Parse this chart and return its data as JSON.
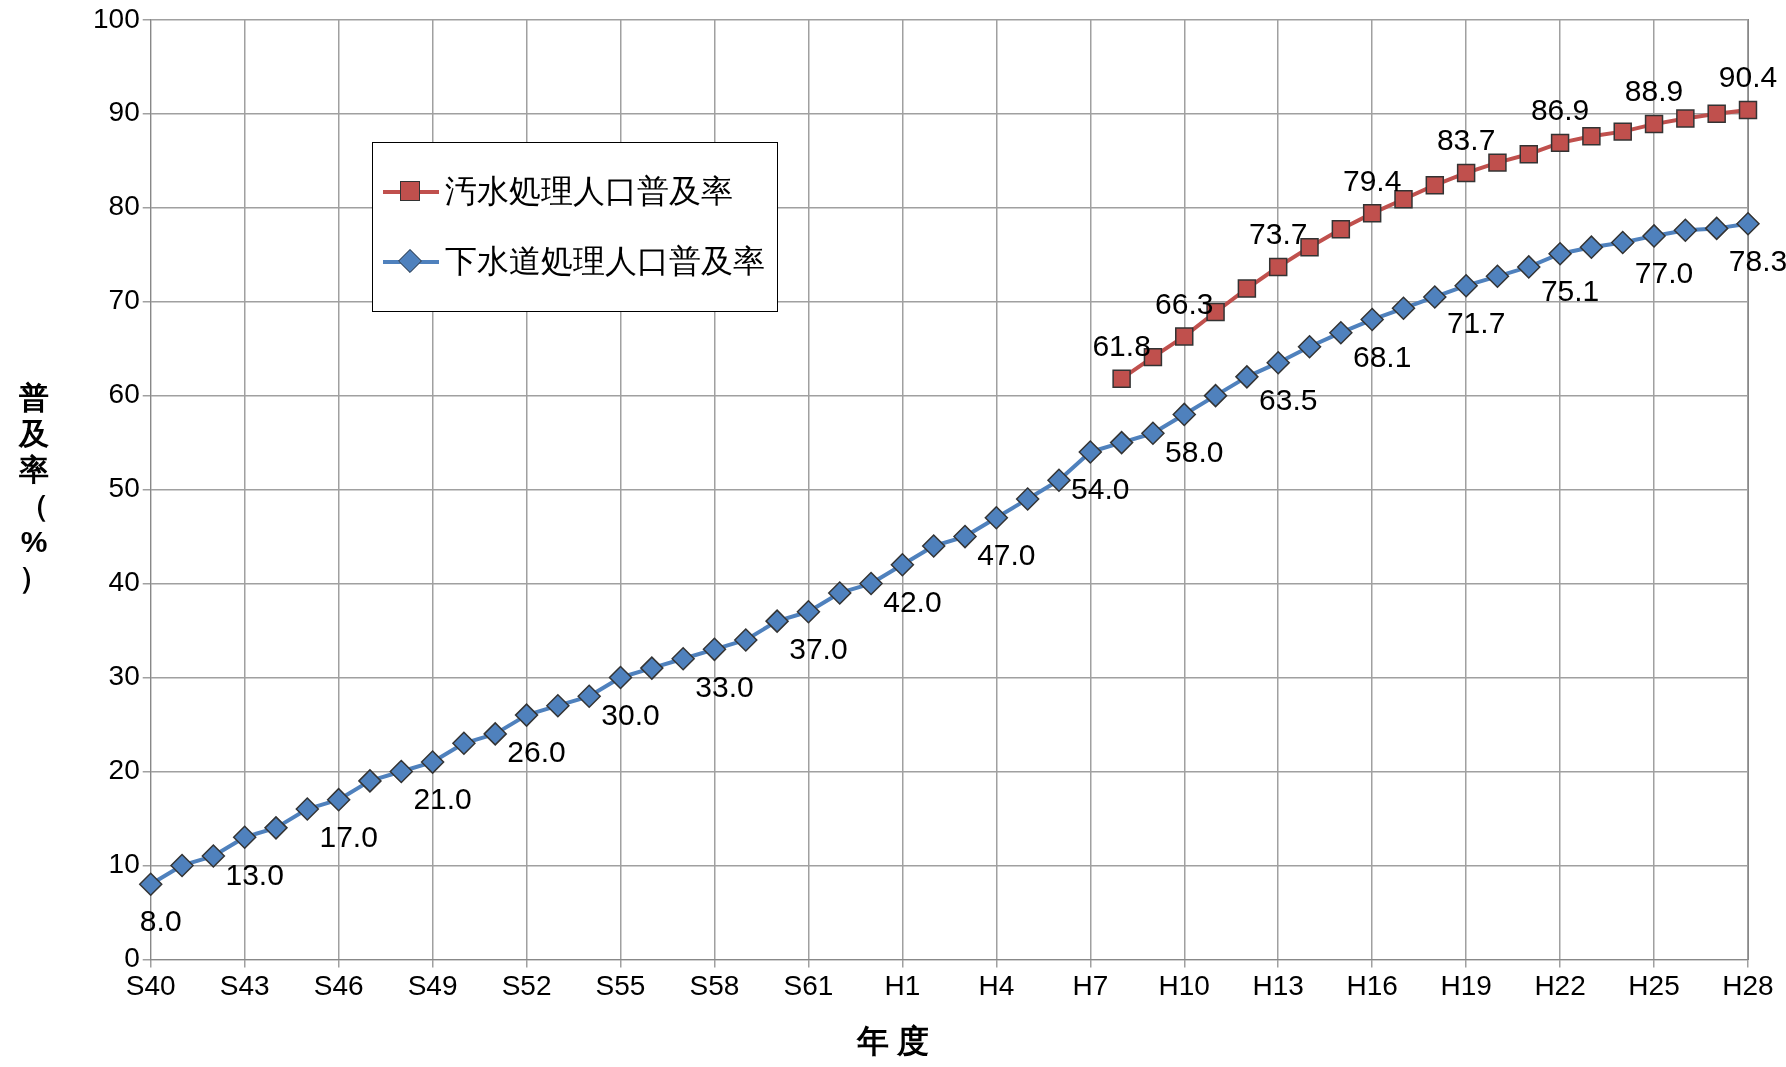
{
  "chart_data": {
    "type": "line",
    "xlabel": "年 度",
    "ylabel": "普及率（%）",
    "categories": [
      "S40",
      null,
      null,
      "S43",
      null,
      null,
      "S46",
      null,
      null,
      "S49",
      null,
      null,
      "S52",
      null,
      null,
      "S55",
      null,
      null,
      "S58",
      null,
      null,
      "S61",
      null,
      null,
      "H1",
      null,
      null,
      "H4",
      null,
      null,
      "H7",
      null,
      null,
      "H10",
      null,
      null,
      "H13",
      null,
      null,
      "H16",
      null,
      null,
      "H19",
      null,
      null,
      "H22",
      null,
      null,
      "H25",
      null,
      null,
      "H28"
    ],
    "ylim": [
      0,
      100
    ],
    "yticks": [
      0,
      10,
      20,
      30,
      40,
      50,
      60,
      70,
      80,
      90,
      100
    ],
    "grid": true,
    "legend": "top left",
    "series": [
      {
        "name": "汚水処理人口普及率",
        "color": "#c0504d",
        "marker": "square",
        "values": [
          null,
          null,
          null,
          null,
          null,
          null,
          null,
          null,
          null,
          null,
          null,
          null,
          null,
          null,
          null,
          null,
          null,
          null,
          null,
          null,
          null,
          null,
          null,
          null,
          null,
          null,
          null,
          null,
          null,
          null,
          null,
          61.8,
          64.1,
          66.3,
          68.9,
          71.4,
          73.7,
          75.8,
          77.7,
          79.4,
          80.9,
          82.4,
          83.7,
          84.8,
          85.7,
          86.9,
          87.6,
          88.1,
          88.9,
          89.5,
          90.0,
          90.4
        ],
        "value_labels": [
          null,
          null,
          null,
          null,
          null,
          null,
          null,
          null,
          null,
          null,
          null,
          null,
          null,
          null,
          null,
          null,
          null,
          null,
          null,
          null,
          null,
          null,
          null,
          null,
          null,
          null,
          null,
          null,
          null,
          null,
          null,
          "61.8",
          null,
          "66.3",
          null,
          null,
          "73.7",
          null,
          null,
          "79.4",
          null,
          null,
          "83.7",
          null,
          null,
          "86.9",
          null,
          null,
          "88.9",
          null,
          null,
          "90.4"
        ]
      },
      {
        "name": "下水道処理人口普及率",
        "color": "#4f81bd",
        "marker": "diamond",
        "values": [
          8,
          10,
          11,
          13,
          14,
          16,
          17,
          19,
          20,
          21,
          23,
          24,
          26,
          27,
          28,
          30,
          31,
          32,
          33,
          34,
          36,
          37,
          39,
          40,
          42,
          44,
          45,
          47,
          49,
          51,
          54,
          55,
          56,
          58,
          60,
          62,
          63.5,
          65.2,
          66.7,
          68.1,
          69.3,
          70.5,
          71.7,
          72.7,
          73.7,
          75.1,
          75.8,
          76.3,
          77.0,
          77.6,
          77.8,
          78.3
        ],
        "value_labels": [
          "8.0",
          null,
          null,
          "13.0",
          null,
          null,
          "17.0",
          null,
          null,
          "21.0",
          null,
          null,
          "26.0",
          null,
          null,
          "30.0",
          null,
          null,
          "33.0",
          null,
          null,
          "37.0",
          null,
          null,
          "42.0",
          null,
          null,
          "47.0",
          null,
          null,
          "54.0",
          null,
          null,
          "58.0",
          null,
          null,
          "63.5",
          null,
          null,
          "68.1",
          null,
          null,
          "71.7",
          null,
          null,
          "75.1",
          null,
          null,
          "77.0",
          null,
          null,
          "78.3"
        ]
      }
    ]
  }
}
